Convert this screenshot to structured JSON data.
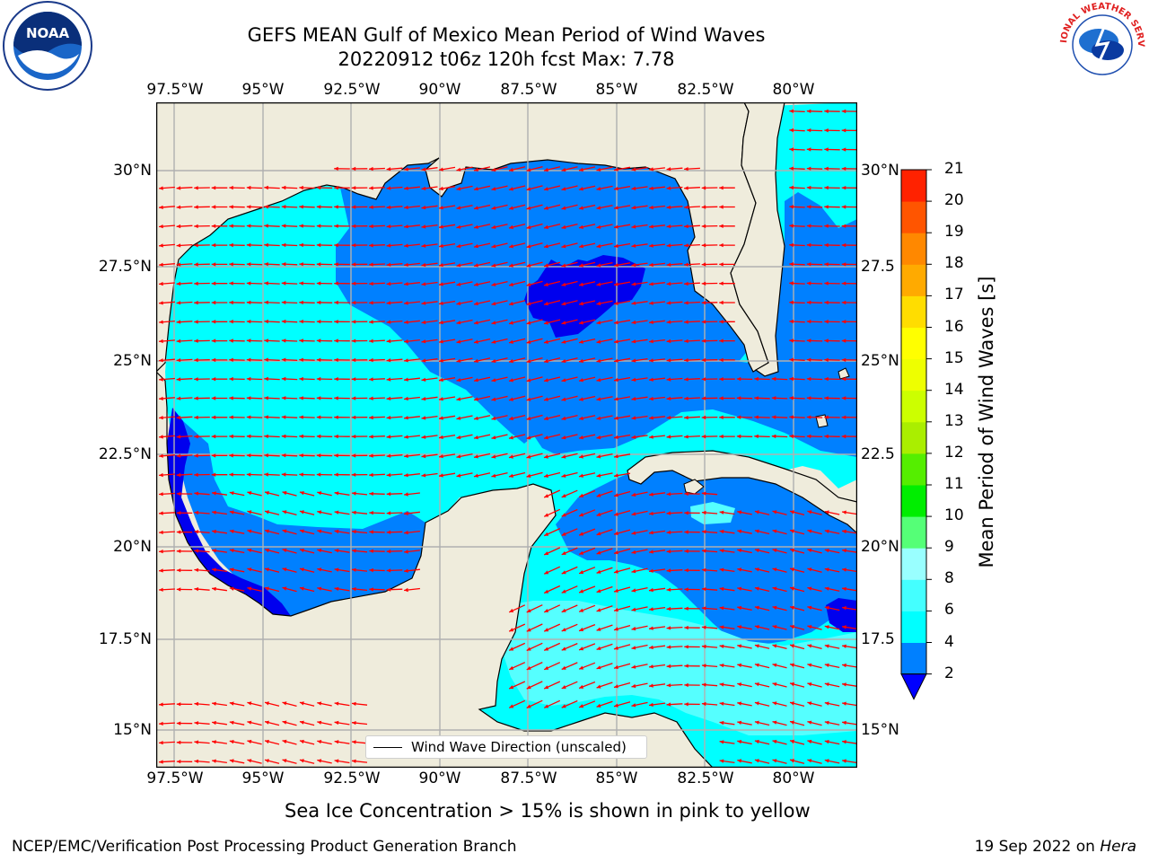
{
  "header": {
    "title_line1": "GEFS MEAN Gulf of Mexico Mean Period of Wind Waves",
    "title_line2": "20220912 t06z 120h fcst   Max: 7.78"
  },
  "logos": {
    "left": {
      "name": "noaa-logo",
      "text": "NOAA"
    },
    "right": {
      "name": "nws-logo",
      "text": "NATIONAL WEATHER SERVICE"
    }
  },
  "map": {
    "lon_labels": [
      "97.5°W",
      "95°W",
      "92.5°W",
      "90°W",
      "87.5°W",
      "85°W",
      "82.5°W",
      "80°W"
    ],
    "lat_labels_left": [
      "30°N",
      "27.5°N",
      "25°N",
      "22.5°N",
      "20°N",
      "17.5°N",
      "15°N"
    ],
    "lat_labels_right": [
      "30°N",
      "27.5",
      "25°N",
      "22.5",
      "20°N",
      "17.5",
      "15°N"
    ],
    "legend_label": "Wind Wave Direction (unscaled)",
    "colors": {
      "land": "#efecdc",
      "ocean_cyan": "#00ffff",
      "ocean_blue": "#0080ff",
      "ocean_dark": "#0000ee",
      "ocean_light": "#55ffff",
      "grid": "#b0b0b0",
      "arrow": "#ff0000"
    }
  },
  "colorbar": {
    "label": "Mean Period of Wind Waves [s]",
    "left_ticks": [
      2,
      4,
      6,
      8,
      9,
      10,
      11,
      12,
      13,
      14,
      15,
      16,
      17,
      18,
      19,
      20,
      21
    ],
    "colors": [
      "#0080ff",
      "#00ffff",
      "#44ffff",
      "#99ffff",
      "#55ff77",
      "#00ee00",
      "#55ee00",
      "#aaee00",
      "#ccff00",
      "#eeff00",
      "#ffff00",
      "#ffdd00",
      "#ffaa00",
      "#ff8800",
      "#ff5500",
      "#ff2200"
    ],
    "extend_color": "#0000ff"
  },
  "footer": {
    "note": "Sea Ice Concentration > 15% is shown in pink to yellow",
    "credit_left": "NCEP/EMC/Verification Post Processing Product Generation Branch",
    "credit_right_prefix": "19 Sep 2022 on ",
    "credit_right_machine": "Hera"
  }
}
